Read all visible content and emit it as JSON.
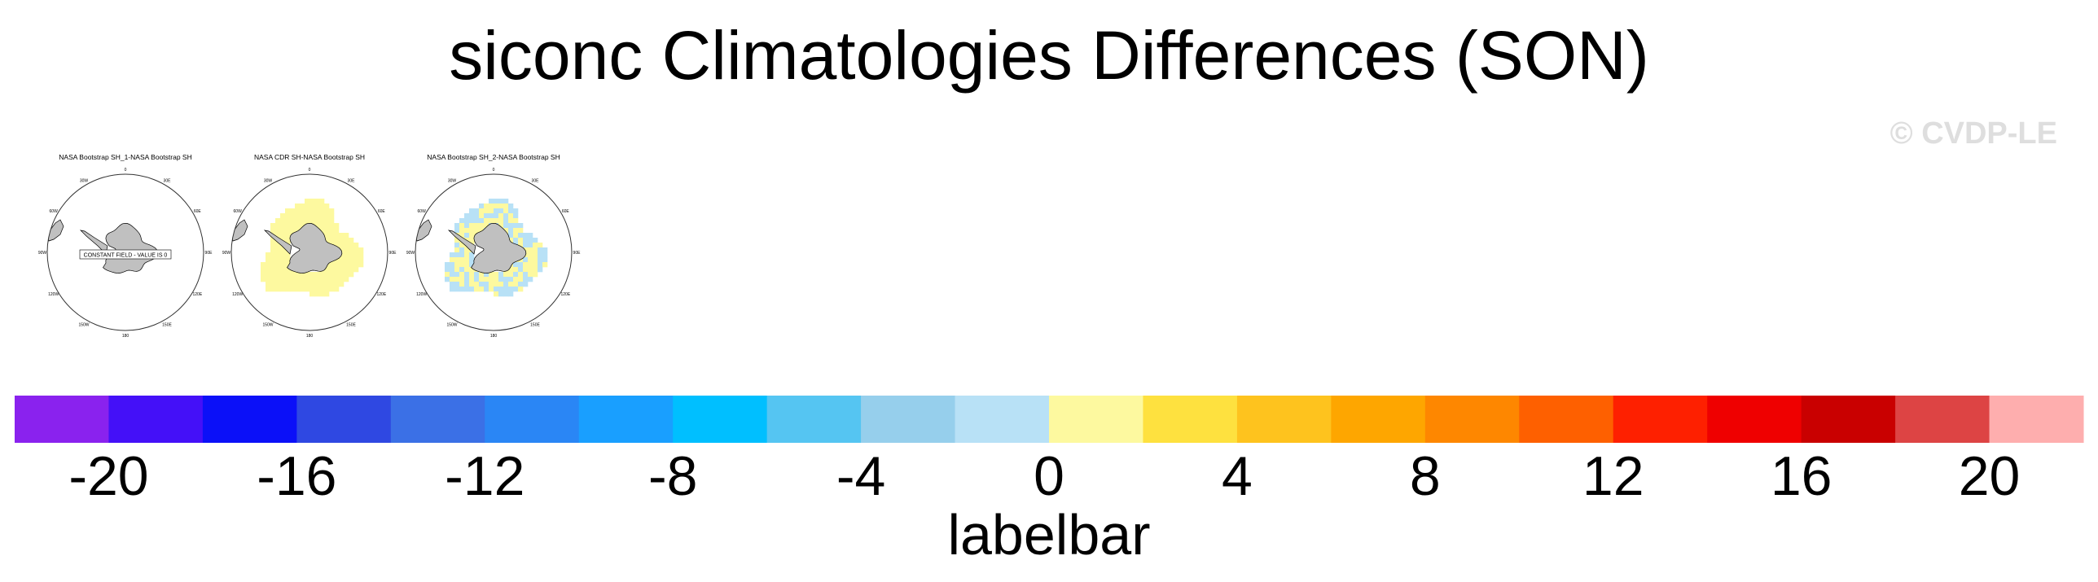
{
  "title": "siconc Climatologies Differences (SON)",
  "watermark": "© CVDP-LE",
  "colors": {
    "land": "#c0c0c0",
    "outline": "#000000"
  },
  "panels": [
    {
      "title": "NASA Bootstrap SH_1-NASA Bootstrap SH",
      "pattern": "zero",
      "overlay_text": "CONSTANT FIELD - VALUE IS 0",
      "lon_labels": [
        "0",
        "30E",
        "60E",
        "90E",
        "120E",
        "150E",
        "180",
        "150W",
        "120W",
        "90W",
        "60W",
        "30W"
      ]
    },
    {
      "title": "NASA CDR SH-NASA Bootstrap SH",
      "pattern": "ring",
      "overlay_text": "",
      "lon_labels": [
        "0",
        "30E",
        "60E",
        "90E",
        "120E",
        "150E",
        "180",
        "150W",
        "120W",
        "90W",
        "60W",
        "30W"
      ]
    },
    {
      "title": "NASA Bootstrap SH_2-NASA Bootstrap SH",
      "pattern": "mixed",
      "overlay_text": "",
      "lon_labels": [
        "0",
        "30E",
        "60E",
        "90E",
        "120E",
        "150E",
        "180",
        "150W",
        "120W",
        "90W",
        "60W",
        "30W"
      ]
    }
  ],
  "labelbar": {
    "title": "labelbar",
    "boundaries": [
      -22,
      -20,
      -18,
      -16,
      -14,
      -12,
      -10,
      -8,
      -6,
      -4,
      -2,
      0,
      2,
      4,
      6,
      8,
      10,
      12,
      14,
      16,
      18,
      20,
      22
    ],
    "colors": [
      "#8a22ee",
      "#4410f8",
      "#0b10f8",
      "#2f48e2",
      "#3b70e6",
      "#2a86f5",
      "#199fff",
      "#00bfff",
      "#55c5f2",
      "#96cfec",
      "#b8e1f6",
      "#fdf99f",
      "#fee13f",
      "#fec31e",
      "#fea600",
      "#fe8700",
      "#fe6000",
      "#fe2000",
      "#ef0000",
      "#c90000",
      "#dd4444",
      "#feaeae"
    ],
    "tick_labels": [
      "-20",
      "-16",
      "-12",
      "-8",
      "-4",
      "0",
      "4",
      "8",
      "12",
      "16",
      "20"
    ]
  }
}
